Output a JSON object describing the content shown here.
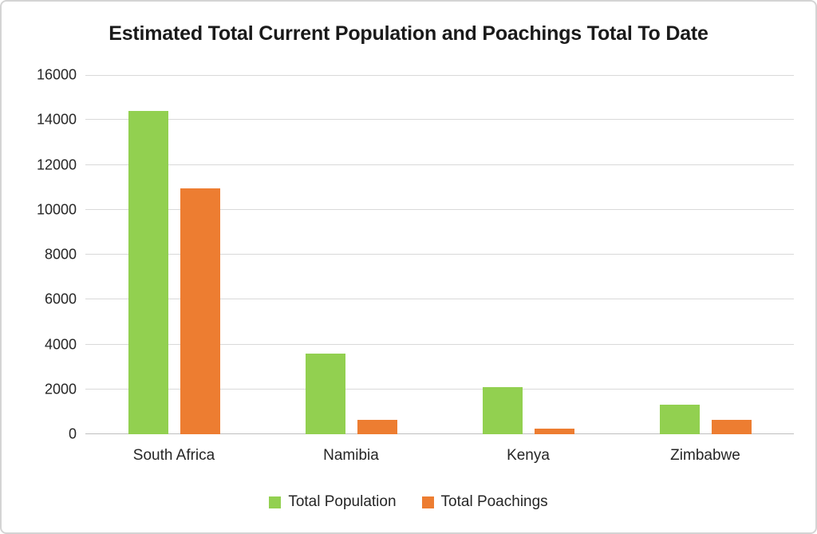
{
  "frame": {
    "background": "#FFFFFF",
    "border_color": "#D4D4D4"
  },
  "chart_data": {
    "type": "bar",
    "title": "Estimated Total Current Population and Poachings Total To Date",
    "categories": [
      "South Africa",
      "Namibia",
      "Kenya",
      "Zimbabwe"
    ],
    "series": [
      {
        "name": "Total Population",
        "color": "#92D050",
        "values": [
          14400,
          3600,
          2100,
          1320
        ]
      },
      {
        "name": "Total Poachings",
        "color": "#ED7D31",
        "values": [
          10950,
          630,
          240,
          650
        ]
      }
    ],
    "xlabel": "",
    "ylabel": "",
    "ylim": [
      0,
      16000
    ],
    "ytick_interval": 2000,
    "yticks": [
      0,
      2000,
      4000,
      6000,
      8000,
      10000,
      12000,
      14000,
      16000
    ],
    "grid": true,
    "gridline_color": "#D9D9D9",
    "axis_line_color": "#BFBFBF",
    "text_color": "#262626",
    "legend_position": "bottom"
  }
}
